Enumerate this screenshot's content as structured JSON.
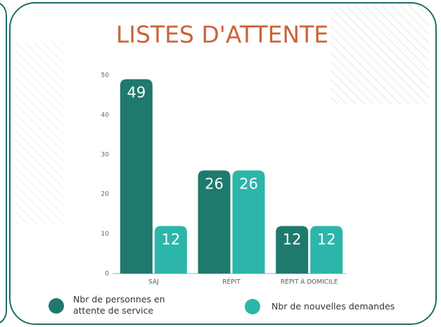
{
  "chart_data": {
    "type": "bar",
    "title": "LISTES D'ATTENTE",
    "categories": [
      "SAJ",
      "RÉPIT",
      "RÉPIT À DOMICILE"
    ],
    "series": [
      {
        "name": "Nbr de personnes en attente de service",
        "color": "#1f7a6e",
        "values": [
          49,
          26,
          12
        ]
      },
      {
        "name": "Nbr de nouvelles demandes",
        "color": "#2cb6a9",
        "values": [
          12,
          26,
          12
        ]
      }
    ],
    "ylim": [
      0,
      50
    ],
    "yticks": [
      0,
      10,
      20,
      30,
      40,
      50
    ],
    "grid": false
  }
}
